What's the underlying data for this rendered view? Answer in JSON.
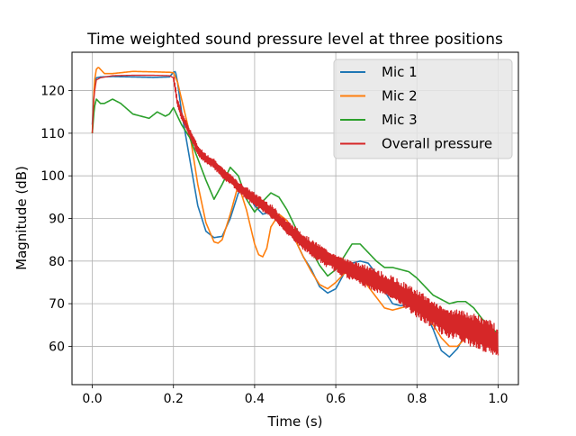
{
  "chart_data": {
    "type": "line",
    "title": "Time weighted sound pressure level at three positions",
    "xlabel": "Time (s)",
    "ylabel": "Magnitude (dB)",
    "xlim": [
      -0.05,
      1.05
    ],
    "ylim": [
      51,
      129
    ],
    "xticks": [
      0.0,
      0.2,
      0.4,
      0.6,
      0.8,
      1.0
    ],
    "xtick_labels": [
      "0.0",
      "0.2",
      "0.4",
      "0.6",
      "0.8",
      "1.0"
    ],
    "yticks": [
      60,
      70,
      80,
      90,
      100,
      110,
      120
    ],
    "ytick_labels": [
      "60",
      "70",
      "80",
      "90",
      "100",
      "110",
      "120"
    ],
    "grid": true,
    "legend_position": "top-right",
    "series": [
      {
        "name": "Mic 1",
        "color": "#1f77b4",
        "x": [
          0.0,
          0.005,
          0.01,
          0.02,
          0.05,
          0.1,
          0.15,
          0.19,
          0.2,
          0.205,
          0.21,
          0.22,
          0.24,
          0.26,
          0.28,
          0.3,
          0.32,
          0.34,
          0.36,
          0.38,
          0.4,
          0.42,
          0.44,
          0.46,
          0.48,
          0.5,
          0.52,
          0.54,
          0.56,
          0.58,
          0.6,
          0.62,
          0.64,
          0.66,
          0.68,
          0.7,
          0.72,
          0.74,
          0.76,
          0.78,
          0.8,
          0.82,
          0.84,
          0.86,
          0.88,
          0.9,
          0.92,
          0.94,
          0.96,
          0.98,
          1.0
        ],
        "y": [
          112,
          121,
          123,
          123.2,
          123.3,
          123.2,
          123.1,
          123.2,
          124.3,
          124.5,
          122,
          115,
          104,
          93,
          87,
          85.5,
          85.8,
          90,
          96,
          96.5,
          93,
          91,
          91.5,
          90,
          88,
          85,
          81,
          78,
          74,
          72.5,
          73.5,
          77,
          79.5,
          80,
          79.5,
          77,
          73,
          70,
          69.5,
          70,
          70,
          68,
          64,
          59,
          57.5,
          59.5,
          63,
          63,
          62,
          61,
          59
        ]
      },
      {
        "name": "Mic 2",
        "color": "#ff7f0e",
        "x": [
          0.0,
          0.005,
          0.01,
          0.015,
          0.02,
          0.03,
          0.05,
          0.1,
          0.15,
          0.19,
          0.2,
          0.21,
          0.22,
          0.24,
          0.26,
          0.28,
          0.3,
          0.31,
          0.32,
          0.34,
          0.36,
          0.38,
          0.4,
          0.41,
          0.42,
          0.43,
          0.44,
          0.46,
          0.48,
          0.5,
          0.52,
          0.54,
          0.56,
          0.58,
          0.6,
          0.62,
          0.64,
          0.66,
          0.68,
          0.7,
          0.72,
          0.74,
          0.76,
          0.78,
          0.8,
          0.82,
          0.84,
          0.86,
          0.88,
          0.9,
          0.92,
          0.94,
          0.96,
          0.98,
          1.0
        ],
        "y": [
          110,
          122,
          125,
          125.5,
          125,
          124,
          124,
          124.5,
          124.4,
          124.3,
          124.2,
          122,
          118,
          110,
          98,
          89,
          84.5,
          84.2,
          85,
          91,
          98,
          92,
          84,
          81.5,
          81,
          83,
          88,
          91,
          89.5,
          85,
          81,
          77.5,
          74.5,
          73.5,
          75,
          77,
          78,
          77,
          74,
          71.5,
          69,
          68.5,
          69,
          69.5,
          69,
          67.5,
          65,
          62,
          60,
          60,
          62,
          63,
          62.5,
          61.5,
          60
        ]
      },
      {
        "name": "Mic 3",
        "color": "#2ca02c",
        "x": [
          0.0,
          0.005,
          0.01,
          0.02,
          0.03,
          0.05,
          0.07,
          0.1,
          0.12,
          0.14,
          0.16,
          0.18,
          0.19,
          0.2,
          0.21,
          0.22,
          0.24,
          0.26,
          0.28,
          0.3,
          0.32,
          0.34,
          0.36,
          0.38,
          0.4,
          0.42,
          0.44,
          0.46,
          0.48,
          0.5,
          0.52,
          0.54,
          0.56,
          0.58,
          0.6,
          0.62,
          0.64,
          0.66,
          0.68,
          0.7,
          0.72,
          0.74,
          0.76,
          0.78,
          0.8,
          0.82,
          0.84,
          0.86,
          0.88,
          0.9,
          0.92,
          0.94,
          0.96,
          0.98,
          1.0
        ],
        "y": [
          110,
          116,
          118,
          117,
          117,
          118,
          117,
          114.5,
          114,
          113.5,
          115,
          114,
          114.5,
          116,
          114,
          112,
          109,
          104,
          99,
          94.5,
          98,
          102,
          100,
          94.5,
          91.5,
          94,
          96,
          95,
          92,
          88,
          84.5,
          82.5,
          79,
          76.5,
          78,
          81,
          84,
          84,
          82,
          80,
          78.5,
          78.5,
          78,
          77.5,
          76,
          74,
          72,
          71,
          70,
          70.5,
          70.5,
          69,
          66.5,
          64.5,
          63
        ]
      },
      {
        "name": "Overall pressure",
        "color": "#d62728",
        "noise_start": 0.2,
        "x": [
          0.0,
          0.003,
          0.006,
          0.01,
          0.02,
          0.05,
          0.1,
          0.15,
          0.19,
          0.2,
          0.21,
          0.22,
          0.24,
          0.26,
          0.28,
          0.3,
          0.32,
          0.34,
          0.36,
          0.38,
          0.4,
          0.42,
          0.44,
          0.46,
          0.48,
          0.5,
          0.52,
          0.54,
          0.56,
          0.58,
          0.6,
          0.62,
          0.64,
          0.66,
          0.68,
          0.7,
          0.72,
          0.74,
          0.76,
          0.78,
          0.8,
          0.82,
          0.84,
          0.86,
          0.88,
          0.9,
          0.92,
          0.94,
          0.96,
          0.98,
          1.0
        ],
        "y": [
          110,
          117,
          120,
          122.5,
          123,
          123.5,
          123.6,
          123.6,
          123.5,
          123,
          117,
          114,
          110,
          106,
          104,
          103,
          101,
          99.5,
          97.5,
          96,
          94.5,
          93,
          91.5,
          89.5,
          87.5,
          86,
          84.5,
          83,
          82,
          81,
          80,
          79,
          78,
          77,
          76,
          75,
          74,
          73,
          72,
          71,
          70,
          69,
          68,
          67,
          66,
          65.5,
          64.5,
          63.5,
          62.5,
          61.5,
          60
        ]
      }
    ]
  }
}
